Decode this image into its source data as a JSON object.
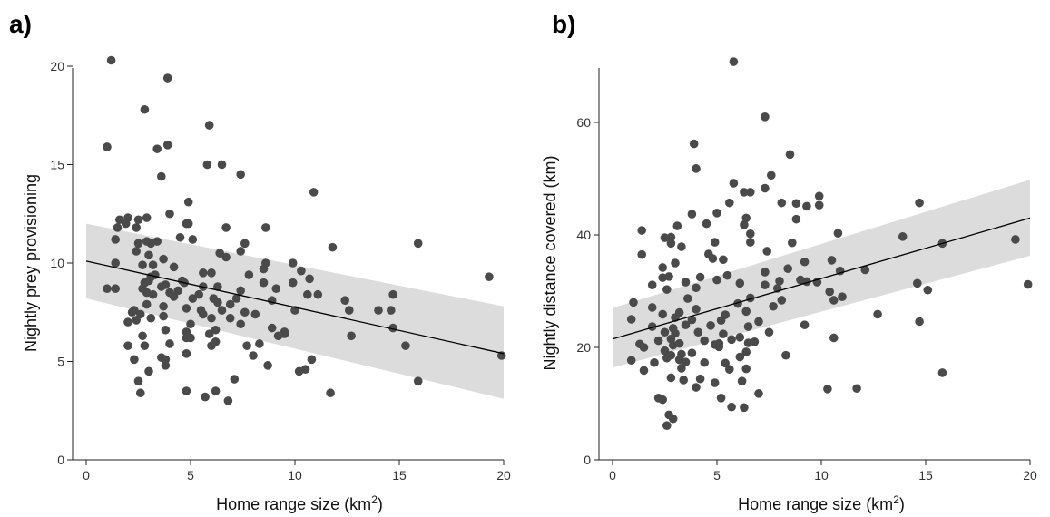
{
  "chart_data": [
    {
      "type": "scatter",
      "panel_label": "a)",
      "xlabel": "Home range size (km",
      "xlabel_sup": "2",
      "xlabel_end": ")",
      "ylabel": "Nightly prey provisioning",
      "xlim": [
        0,
        20
      ],
      "ylim": [
        0,
        20
      ],
      "xticks": [
        0,
        5,
        10,
        15,
        20
      ],
      "yticks": [
        0,
        5,
        10,
        15,
        20
      ],
      "grid": false,
      "fit_line": {
        "x": [
          0,
          20
        ],
        "y": [
          10.1,
          5.4
        ]
      },
      "ci_band": {
        "x": [
          0,
          20
        ],
        "upper": [
          12.0,
          7.8
        ],
        "lower": [
          8.2,
          3.1
        ]
      },
      "colors": {
        "points": "#4a4a4a",
        "band": "#dcdcdc",
        "line": "#000000"
      },
      "points": [
        [
          1.2,
          20.3
        ],
        [
          3.9,
          19.4
        ],
        [
          2.8,
          17.8
        ],
        [
          5.9,
          17.0
        ],
        [
          3.9,
          16.0
        ],
        [
          1.0,
          15.9
        ],
        [
          3.4,
          15.8
        ],
        [
          5.8,
          15.0
        ],
        [
          6.5,
          15.0
        ],
        [
          7.4,
          14.5
        ],
        [
          3.6,
          14.4
        ],
        [
          10.9,
          13.6
        ],
        [
          4.9,
          13.1
        ],
        [
          4.0,
          12.5
        ],
        [
          1.6,
          12.2
        ],
        [
          2.0,
          12.3
        ],
        [
          2.9,
          12.3
        ],
        [
          4.8,
          12.0
        ],
        [
          4.9,
          12.0
        ],
        [
          1.5,
          11.8
        ],
        [
          2.4,
          11.8
        ],
        [
          6.7,
          11.8
        ],
        [
          8.6,
          11.8
        ],
        [
          1.9,
          12.0
        ],
        [
          2.5,
          12.2
        ],
        [
          4.5,
          11.3
        ],
        [
          5.1,
          11.2
        ],
        [
          1.4,
          11.2
        ],
        [
          2.5,
          11.0
        ],
        [
          2.9,
          11.1
        ],
        [
          3.1,
          11.0
        ],
        [
          3.4,
          11.1
        ],
        [
          11.8,
          10.8
        ],
        [
          7.6,
          11.0
        ],
        [
          7.4,
          10.6
        ],
        [
          15.9,
          11.0
        ],
        [
          2.4,
          10.6
        ],
        [
          3.0,
          10.4
        ],
        [
          3.7,
          10.2
        ],
        [
          6.4,
          10.5
        ],
        [
          6.7,
          10.3
        ],
        [
          9.9,
          10.0
        ],
        [
          1.4,
          10.0
        ],
        [
          2.7,
          9.9
        ],
        [
          3.2,
          9.9
        ],
        [
          4.2,
          9.8
        ],
        [
          8.5,
          9.7
        ],
        [
          8.6,
          10.0
        ],
        [
          10.3,
          9.6
        ],
        [
          3.3,
          9.4
        ],
        [
          6.0,
          9.5
        ],
        [
          5.6,
          9.5
        ],
        [
          7.8,
          9.4
        ],
        [
          3.1,
          9.3
        ],
        [
          10.7,
          9.2
        ],
        [
          19.3,
          9.3
        ],
        [
          2.8,
          9.0
        ],
        [
          3.0,
          9.1
        ],
        [
          3.8,
          8.9
        ],
        [
          4.6,
          9.1
        ],
        [
          4.7,
          9.0
        ],
        [
          8.5,
          9.0
        ],
        [
          9.9,
          9.0
        ],
        [
          1.0,
          8.7
        ],
        [
          1.4,
          8.7
        ],
        [
          2.7,
          8.7
        ],
        [
          3.6,
          8.8
        ],
        [
          4.4,
          8.6
        ],
        [
          5.4,
          8.4
        ],
        [
          5.6,
          8.8
        ],
        [
          6.3,
          8.8
        ],
        [
          9.1,
          8.7
        ],
        [
          2.9,
          8.5
        ],
        [
          3.2,
          8.4
        ],
        [
          4.0,
          8.5
        ],
        [
          4.2,
          8.3
        ],
        [
          5.1,
          8.2
        ],
        [
          6.1,
          8.2
        ],
        [
          6.3,
          8.0
        ],
        [
          7.2,
          8.2
        ],
        [
          7.4,
          8.6
        ],
        [
          8.9,
          8.1
        ],
        [
          10.6,
          8.4
        ],
        [
          11.1,
          8.4
        ],
        [
          12.4,
          8.1
        ],
        [
          14.7,
          8.4
        ],
        [
          2.9,
          7.9
        ],
        [
          3.7,
          7.8
        ],
        [
          4.8,
          7.7
        ],
        [
          5.5,
          7.6
        ],
        [
          6.5,
          7.6
        ],
        [
          6.9,
          7.9
        ],
        [
          8.1,
          7.4
        ],
        [
          10.0,
          7.6
        ],
        [
          12.6,
          7.6
        ],
        [
          14.0,
          7.6
        ],
        [
          14.6,
          7.6
        ],
        [
          2.2,
          7.5
        ],
        [
          2.6,
          7.4
        ],
        [
          3.7,
          7.3
        ],
        [
          5.6,
          7.4
        ],
        [
          6.0,
          7.2
        ],
        [
          6.9,
          7.2
        ],
        [
          7.6,
          7.5
        ],
        [
          2.3,
          7.6
        ],
        [
          2.4,
          7.1
        ],
        [
          3.1,
          7.2
        ],
        [
          5.0,
          6.9
        ],
        [
          7.4,
          6.9
        ],
        [
          8.9,
          6.7
        ],
        [
          9.5,
          6.4
        ],
        [
          2.0,
          7.0
        ],
        [
          3.8,
          6.6
        ],
        [
          4.8,
          6.5
        ],
        [
          5.9,
          6.4
        ],
        [
          6.2,
          6.6
        ],
        [
          9.2,
          6.3
        ],
        [
          9.5,
          6.5
        ],
        [
          12.7,
          6.3
        ],
        [
          14.7,
          6.7
        ],
        [
          2.7,
          6.3
        ],
        [
          4.8,
          6.2
        ],
        [
          5.0,
          6.2
        ],
        [
          6.2,
          6.0
        ],
        [
          7.7,
          5.8
        ],
        [
          8.3,
          5.9
        ],
        [
          2.0,
          5.8
        ],
        [
          2.8,
          5.8
        ],
        [
          4.0,
          5.9
        ],
        [
          6.0,
          5.8
        ],
        [
          8.0,
          5.3
        ],
        [
          10.2,
          4.5
        ],
        [
          10.5,
          4.6
        ],
        [
          15.3,
          5.8
        ],
        [
          19.9,
          5.3
        ],
        [
          2.3,
          5.1
        ],
        [
          3.6,
          5.2
        ],
        [
          3.8,
          5.1
        ],
        [
          4.8,
          5.4
        ],
        [
          3.0,
          4.5
        ],
        [
          3.8,
          4.8
        ],
        [
          7.1,
          4.1
        ],
        [
          8.7,
          4.8
        ],
        [
          10.8,
          5.1
        ],
        [
          2.5,
          4.0
        ],
        [
          2.6,
          3.4
        ],
        [
          4.8,
          3.5
        ],
        [
          6.2,
          3.5
        ],
        [
          5.7,
          3.2
        ],
        [
          6.8,
          3.0
        ],
        [
          11.7,
          3.4
        ],
        [
          15.9,
          4.0
        ]
      ]
    },
    {
      "type": "scatter",
      "panel_label": "b)",
      "xlabel": "Home range size (km",
      "xlabel_sup": "2",
      "xlabel_end": ")",
      "ylabel": "Nightly distance covered (km)",
      "xlim": [
        0,
        20
      ],
      "ylim": [
        0,
        70
      ],
      "xticks": [
        0,
        5,
        10,
        15,
        20
      ],
      "yticks": [
        0,
        20,
        40,
        60
      ],
      "grid": false,
      "fit_line": {
        "x": [
          0,
          20
        ],
        "y": [
          21.5,
          43.0
        ]
      },
      "ci_band": {
        "x": [
          0,
          20
        ],
        "upper": [
          27.0,
          49.8
        ],
        "lower": [
          16.4,
          36.3
        ]
      },
      "colors": {
        "points": "#4a4a4a",
        "band": "#dcdcdc",
        "line": "#000000"
      },
      "points": [
        [
          5.8,
          70.8
        ],
        [
          7.3,
          61.0
        ],
        [
          3.9,
          56.2
        ],
        [
          8.5,
          54.3
        ],
        [
          4.0,
          51.8
        ],
        [
          7.6,
          50.6
        ],
        [
          5.8,
          49.2
        ],
        [
          6.6,
          47.6
        ],
        [
          7.3,
          48.3
        ],
        [
          6.3,
          47.6
        ],
        [
          9.9,
          46.9
        ],
        [
          14.7,
          45.7
        ],
        [
          8.1,
          45.7
        ],
        [
          8.8,
          45.6
        ],
        [
          9.9,
          45.3
        ],
        [
          9.3,
          45.1
        ],
        [
          5.6,
          45.7
        ],
        [
          5.0,
          43.9
        ],
        [
          3.8,
          43.7
        ],
        [
          6.4,
          43.0
        ],
        [
          8.8,
          42.8
        ],
        [
          3.1,
          41.6
        ],
        [
          2.8,
          39.6
        ],
        [
          1.4,
          40.8
        ],
        [
          10.8,
          40.3
        ],
        [
          13.9,
          39.7
        ],
        [
          6.6,
          40.2
        ],
        [
          6.3,
          41.8
        ],
        [
          4.5,
          42.0
        ],
        [
          2.5,
          39.5
        ],
        [
          2.8,
          38.5
        ],
        [
          4.9,
          38.7
        ],
        [
          6.6,
          38.7
        ],
        [
          8.6,
          38.6
        ],
        [
          15.8,
          38.5
        ],
        [
          19.3,
          39.2
        ],
        [
          3.3,
          37.9
        ],
        [
          1.4,
          36.5
        ],
        [
          4.6,
          36.6
        ],
        [
          7.4,
          37.1
        ],
        [
          4.8,
          35.8
        ],
        [
          3.0,
          35.0
        ],
        [
          9.2,
          35.2
        ],
        [
          10.5,
          35.5
        ],
        [
          5.3,
          35.6
        ],
        [
          2.4,
          34.2
        ],
        [
          8.4,
          34.0
        ],
        [
          7.3,
          33.4
        ],
        [
          10.9,
          33.6
        ],
        [
          12.1,
          33.8
        ],
        [
          5.5,
          32.8
        ],
        [
          2.7,
          32.6
        ],
        [
          5.0,
          32.0
        ],
        [
          6.1,
          31.4
        ],
        [
          8.0,
          31.8
        ],
        [
          9.0,
          32.0
        ],
        [
          2.4,
          32.4
        ],
        [
          4.2,
          32.5
        ],
        [
          1.9,
          31.1
        ],
        [
          3.5,
          31.6
        ],
        [
          7.3,
          31.1
        ],
        [
          9.3,
          31.7
        ],
        [
          9.8,
          31.6
        ],
        [
          14.6,
          31.4
        ],
        [
          15.1,
          30.2
        ],
        [
          19.9,
          31.2
        ],
        [
          2.6,
          30.3
        ],
        [
          4.0,
          30.6
        ],
        [
          7.9,
          30.5
        ],
        [
          10.4,
          29.9
        ],
        [
          1.0,
          28.0
        ],
        [
          3.6,
          28.7
        ],
        [
          6.6,
          28.8
        ],
        [
          8.1,
          28.4
        ],
        [
          10.6,
          28.4
        ],
        [
          11.0,
          29.0
        ],
        [
          1.9,
          27.1
        ],
        [
          6.0,
          27.8
        ],
        [
          7.7,
          27.3
        ],
        [
          3.2,
          26.2
        ],
        [
          4.0,
          26.8
        ],
        [
          5.4,
          25.8
        ],
        [
          12.7,
          25.9
        ],
        [
          0.9,
          25.0
        ],
        [
          2.4,
          25.9
        ],
        [
          3.0,
          25.3
        ],
        [
          6.4,
          26.4
        ],
        [
          7.0,
          24.6
        ],
        [
          9.2,
          24.0
        ],
        [
          14.7,
          24.6
        ],
        [
          5.2,
          24.8
        ],
        [
          2.9,
          23.4
        ],
        [
          3.5,
          24.0
        ],
        [
          3.8,
          24.9
        ],
        [
          4.7,
          23.9
        ],
        [
          6.5,
          23.7
        ],
        [
          1.9,
          23.7
        ],
        [
          2.5,
          22.7
        ],
        [
          3.0,
          22.5
        ],
        [
          4.1,
          22.7
        ],
        [
          5.3,
          22.4
        ],
        [
          6.1,
          21.8
        ],
        [
          7.5,
          22.7
        ],
        [
          10.6,
          21.7
        ],
        [
          2.2,
          21.2
        ],
        [
          2.8,
          21.5
        ],
        [
          4.4,
          21.2
        ],
        [
          5.1,
          20.7
        ],
        [
          5.7,
          21.4
        ],
        [
          6.5,
          20.8
        ],
        [
          1.3,
          20.6
        ],
        [
          2.9,
          20.4
        ],
        [
          3.2,
          20.7
        ],
        [
          4.9,
          20.5
        ],
        [
          5.1,
          20.1
        ],
        [
          1.5,
          20.0
        ],
        [
          2.5,
          19.4
        ],
        [
          3.8,
          19.0
        ],
        [
          6.4,
          19.2
        ],
        [
          6.8,
          21.0
        ],
        [
          2.8,
          18.6
        ],
        [
          3.3,
          18.8
        ],
        [
          2.6,
          18.1
        ],
        [
          3.2,
          17.8
        ],
        [
          4.4,
          17.3
        ],
        [
          6.1,
          18.3
        ],
        [
          8.3,
          18.6
        ],
        [
          0.9,
          17.7
        ],
        [
          2.0,
          17.3
        ],
        [
          3.5,
          17.4
        ],
        [
          5.4,
          17.2
        ],
        [
          1.5,
          15.9
        ],
        [
          3.3,
          16.3
        ],
        [
          4.2,
          14.4
        ],
        [
          5.6,
          16.1
        ],
        [
          6.4,
          16.2
        ],
        [
          15.8,
          15.5
        ],
        [
          2.8,
          14.6
        ],
        [
          3.4,
          14.2
        ],
        [
          6.2,
          14.0
        ],
        [
          4.9,
          13.7
        ],
        [
          4.0,
          12.9
        ],
        [
          10.3,
          12.6
        ],
        [
          11.7,
          12.7
        ],
        [
          2.2,
          11.0
        ],
        [
          2.4,
          10.7
        ],
        [
          5.2,
          11.0
        ],
        [
          7.0,
          11.8
        ],
        [
          5.7,
          9.4
        ],
        [
          6.3,
          9.3
        ],
        [
          2.7,
          8.0
        ],
        [
          2.9,
          7.3
        ],
        [
          2.6,
          6.1
        ]
      ]
    }
  ]
}
